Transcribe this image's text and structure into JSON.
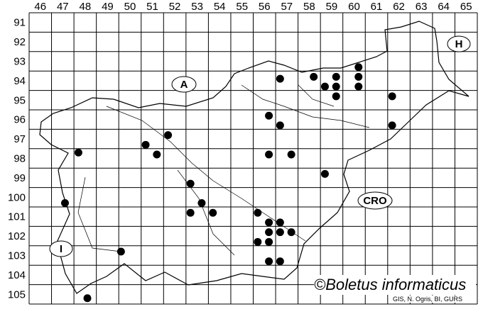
{
  "map": {
    "columns": [
      46,
      47,
      48,
      49,
      50,
      51,
      52,
      53,
      54,
      55,
      56,
      57,
      58,
      59,
      60,
      61,
      62,
      63,
      64,
      65
    ],
    "rows": [
      91,
      92,
      93,
      94,
      95,
      96,
      97,
      98,
      99,
      100,
      101,
      102,
      103,
      104,
      105
    ],
    "regions": {
      "austria": "A",
      "hungary": "H",
      "croatia": "CRO",
      "italy": "I"
    },
    "records": [
      [
        56.7,
        93.9
      ],
      [
        58.2,
        93.8
      ],
      [
        58.7,
        94.3
      ],
      [
        59.2,
        93.8
      ],
      [
        59.2,
        94.3
      ],
      [
        59.2,
        94.8
      ],
      [
        60.2,
        93.3
      ],
      [
        60.2,
        93.8
      ],
      [
        60.2,
        94.3
      ],
      [
        61.7,
        94.8
      ],
      [
        61.7,
        96.3
      ],
      [
        56.2,
        95.8
      ],
      [
        56.7,
        96.3
      ],
      [
        51.7,
        96.8
      ],
      [
        50.7,
        97.3
      ],
      [
        51.2,
        97.8
      ],
      [
        47.7,
        97.7
      ],
      [
        56.2,
        97.8
      ],
      [
        57.2,
        97.8
      ],
      [
        58.7,
        98.8
      ],
      [
        52.7,
        99.3
      ],
      [
        47.1,
        100.3
      ],
      [
        53.2,
        100.3
      ],
      [
        52.7,
        100.8
      ],
      [
        53.7,
        100.8
      ],
      [
        55.7,
        100.8
      ],
      [
        56.2,
        101.3
      ],
      [
        56.7,
        101.3
      ],
      [
        56.2,
        101.8
      ],
      [
        56.7,
        101.8
      ],
      [
        57.2,
        101.8
      ],
      [
        55.7,
        102.3
      ],
      [
        56.2,
        102.3
      ],
      [
        49.6,
        102.8
      ],
      [
        56.2,
        103.3
      ],
      [
        56.7,
        103.3
      ],
      [
        48.1,
        105.2
      ]
    ],
    "marker_color": "#000000"
  },
  "credit": "©Boletus informaticus",
  "source": "GIS, N. Ogris, BI, GURS"
}
